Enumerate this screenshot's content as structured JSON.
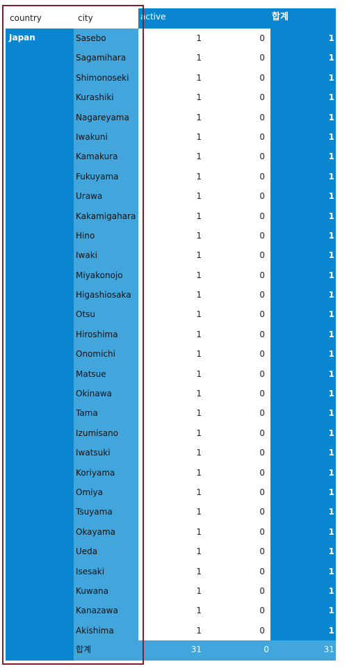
{
  "headers": {
    "country": "country",
    "city": "city",
    "active": "active",
    "total": "합계"
  },
  "country": "Japan",
  "rows": [
    {
      "city": "Sasebo",
      "v1": "1",
      "v2": "0",
      "total": "1"
    },
    {
      "city": "Sagamihara",
      "v1": "1",
      "v2": "0",
      "total": "1"
    },
    {
      "city": "Shimonoseki",
      "v1": "1",
      "v2": "0",
      "total": "1"
    },
    {
      "city": "Kurashiki",
      "v1": "1",
      "v2": "0",
      "total": "1"
    },
    {
      "city": "Nagareyama",
      "v1": "1",
      "v2": "0",
      "total": "1"
    },
    {
      "city": "Iwakuni",
      "v1": "1",
      "v2": "0",
      "total": "1"
    },
    {
      "city": "Kamakura",
      "v1": "1",
      "v2": "0",
      "total": "1"
    },
    {
      "city": "Fukuyama",
      "v1": "1",
      "v2": "0",
      "total": "1"
    },
    {
      "city": "Urawa",
      "v1": "1",
      "v2": "0",
      "total": "1"
    },
    {
      "city": "Kakamigahara",
      "v1": "1",
      "v2": "0",
      "total": "1"
    },
    {
      "city": "Hino",
      "v1": "1",
      "v2": "0",
      "total": "1"
    },
    {
      "city": "Iwaki",
      "v1": "1",
      "v2": "0",
      "total": "1"
    },
    {
      "city": "Miyakonojo",
      "v1": "1",
      "v2": "0",
      "total": "1"
    },
    {
      "city": "Higashiosaka",
      "v1": "1",
      "v2": "0",
      "total": "1"
    },
    {
      "city": "Otsu",
      "v1": "1",
      "v2": "0",
      "total": "1"
    },
    {
      "city": "Hiroshima",
      "v1": "1",
      "v2": "0",
      "total": "1"
    },
    {
      "city": "Onomichi",
      "v1": "1",
      "v2": "0",
      "total": "1"
    },
    {
      "city": "Matsue",
      "v1": "1",
      "v2": "0",
      "total": "1"
    },
    {
      "city": "Okinawa",
      "v1": "1",
      "v2": "0",
      "total": "1"
    },
    {
      "city": "Tama",
      "v1": "1",
      "v2": "0",
      "total": "1"
    },
    {
      "city": "Izumisano",
      "v1": "1",
      "v2": "0",
      "total": "1"
    },
    {
      "city": "Iwatsuki",
      "v1": "1",
      "v2": "0",
      "total": "1"
    },
    {
      "city": "Koriyama",
      "v1": "1",
      "v2": "0",
      "total": "1"
    },
    {
      "city": "Omiya",
      "v1": "1",
      "v2": "0",
      "total": "1"
    },
    {
      "city": "Tsuyama",
      "v1": "1",
      "v2": "0",
      "total": "1"
    },
    {
      "city": "Okayama",
      "v1": "1",
      "v2": "0",
      "total": "1"
    },
    {
      "city": "Ueda",
      "v1": "1",
      "v2": "0",
      "total": "1"
    },
    {
      "city": "Isesaki",
      "v1": "1",
      "v2": "0",
      "total": "1"
    },
    {
      "city": "Kuwana",
      "v1": "1",
      "v2": "0",
      "total": "1"
    },
    {
      "city": "Kanazawa",
      "v1": "1",
      "v2": "0",
      "total": "1"
    },
    {
      "city": "Akishima",
      "v1": "1",
      "v2": "0",
      "total": "1"
    }
  ],
  "footer": {
    "label": "합계",
    "v1": "31",
    "v2": "0",
    "total": "31"
  },
  "colors": {
    "primary": "#0a86d0",
    "light": "#42a5dc",
    "selection": "#8b1a2e"
  }
}
